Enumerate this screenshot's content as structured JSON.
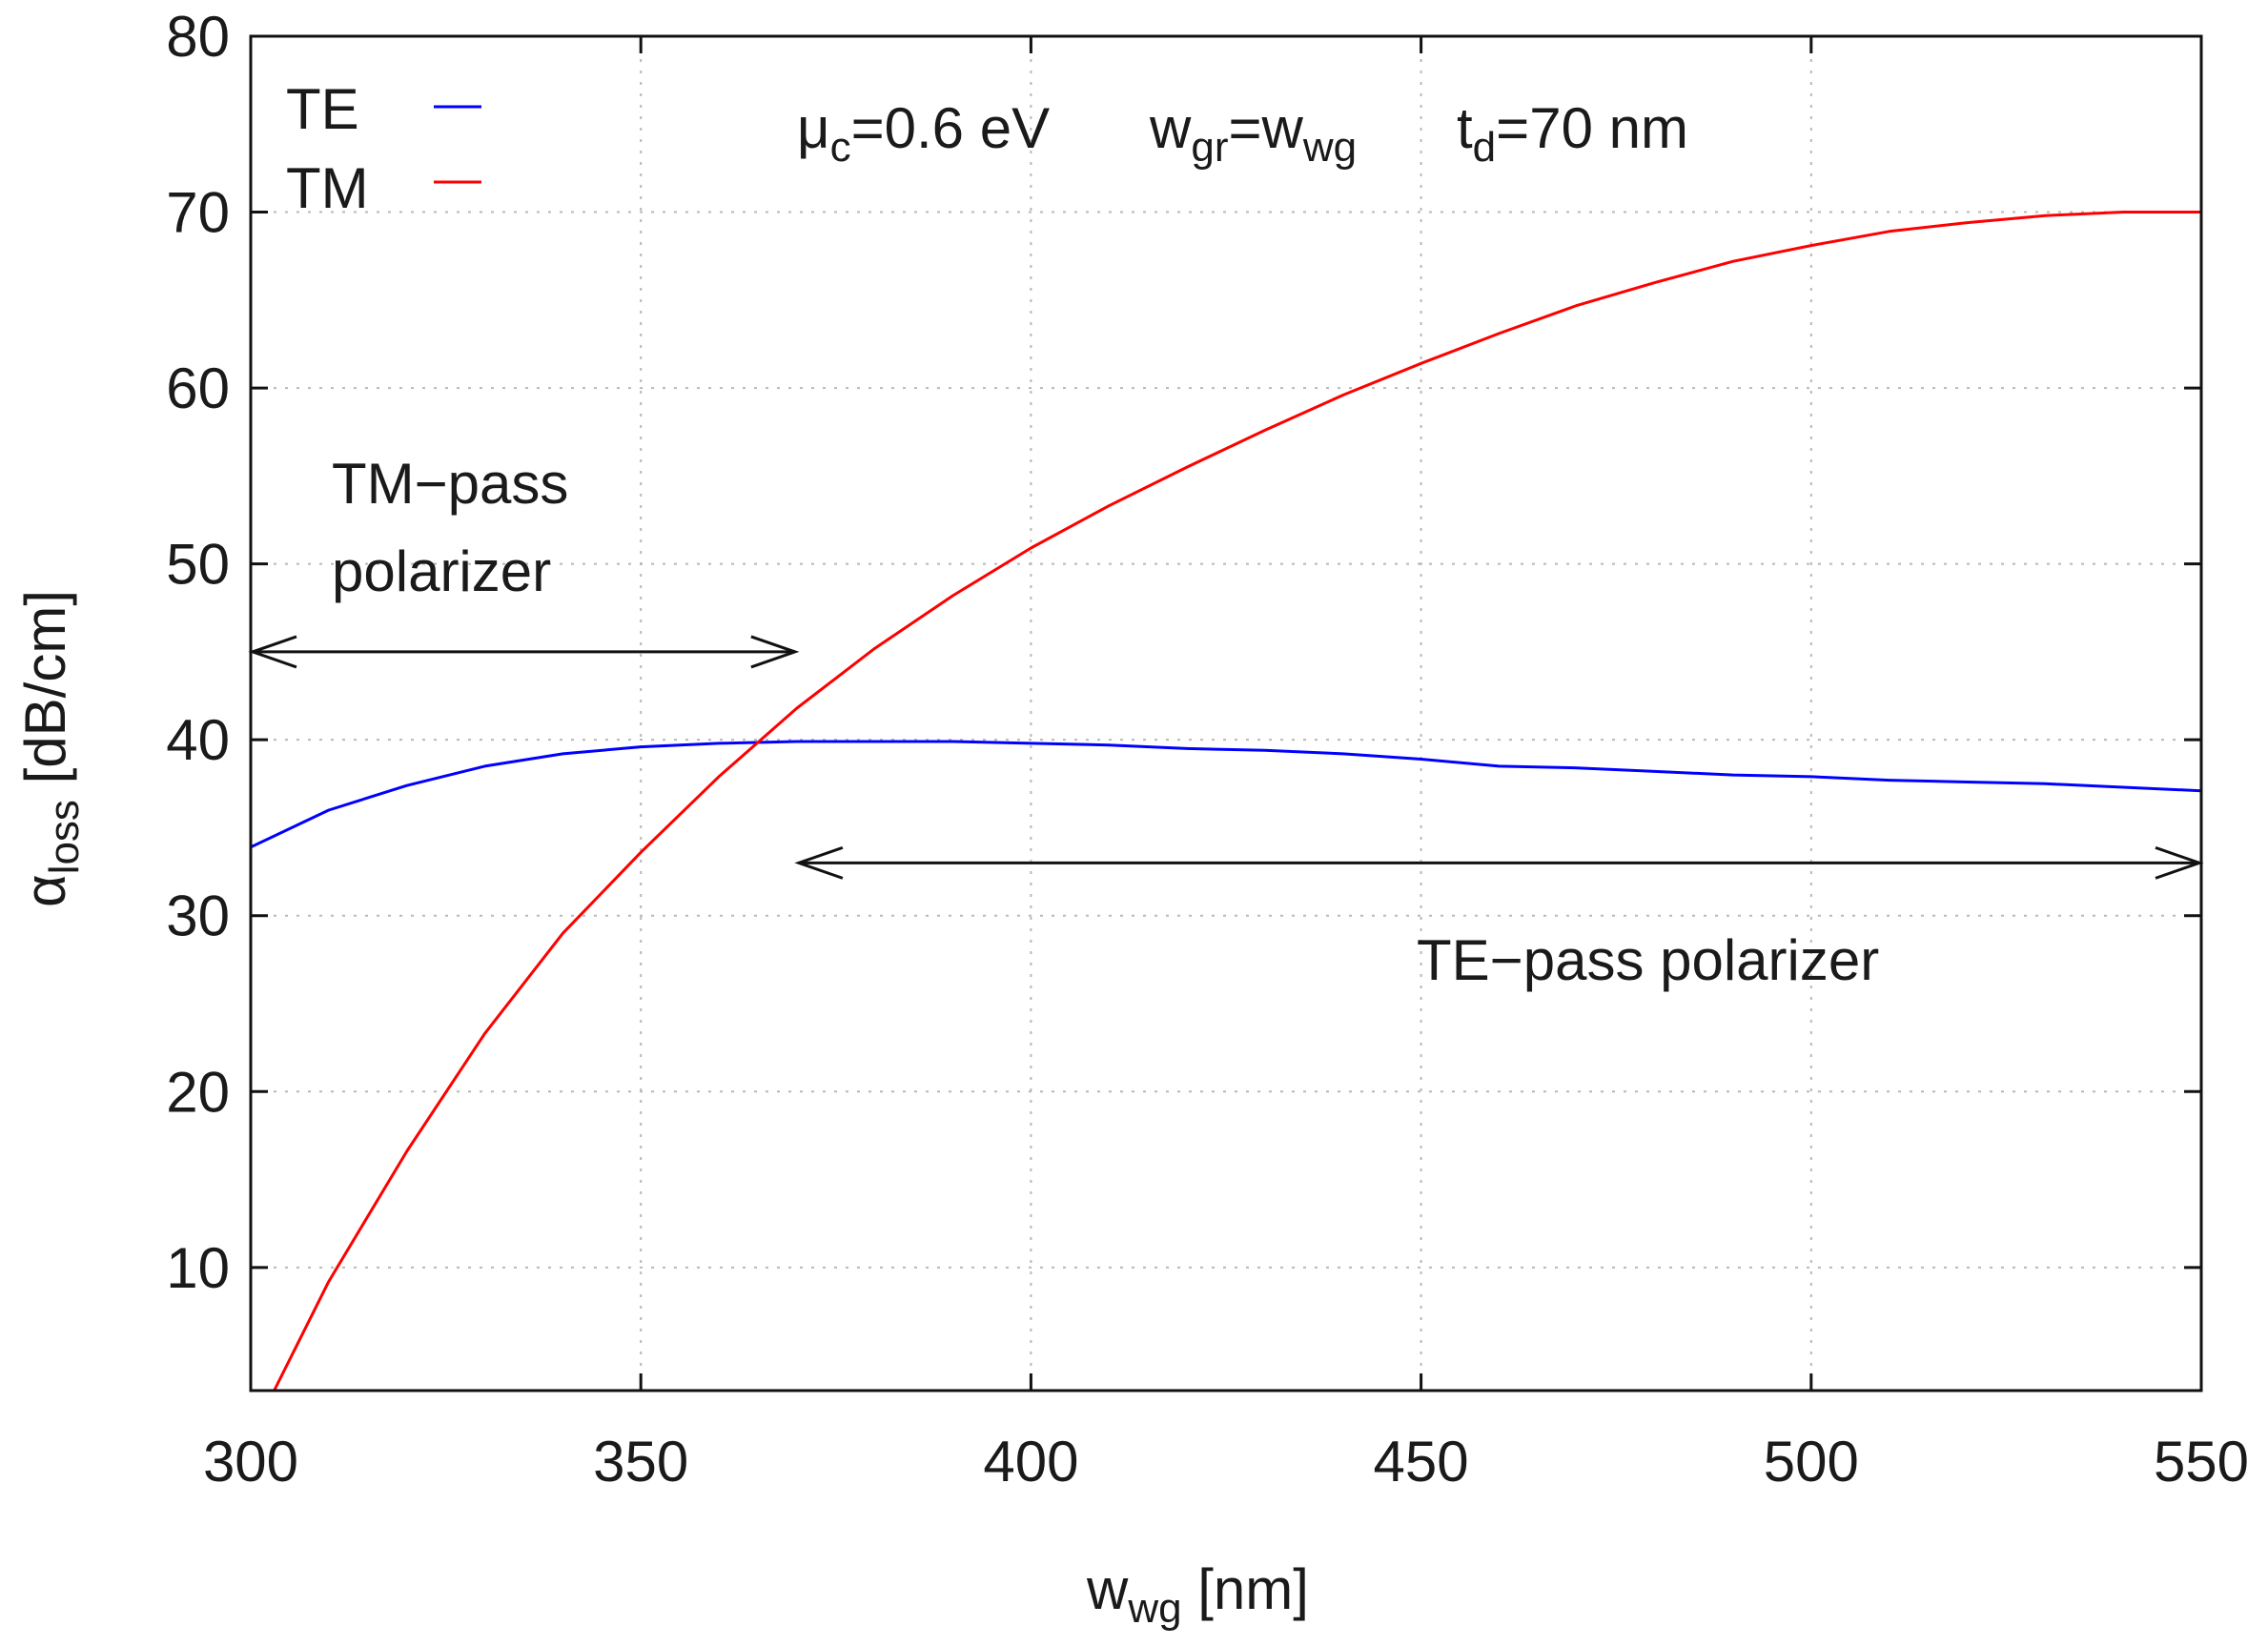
{
  "chart_data": {
    "type": "line",
    "xlabel": "w",
    "xlabel_sub": "wg",
    "xlabel_unit": " [nm]",
    "ylabel": "α",
    "ylabel_sub": "loss",
    "ylabel_unit": " [dB/cm]",
    "xlim": [
      300,
      550
    ],
    "ylim": [
      3,
      80
    ],
    "x_ticks": [
      "300",
      "350",
      "400",
      "450",
      "500",
      "550"
    ],
    "y_ticks": [
      "10",
      "20",
      "30",
      "40",
      "50",
      "60",
      "70",
      "80"
    ],
    "grid": true,
    "legend_position": "top-left",
    "series": [
      {
        "name": "TE",
        "color": "#0000ff",
        "x": [
          300,
          310,
          320,
          330,
          340,
          350,
          360,
          370,
          380,
          390,
          400,
          410,
          420,
          430,
          440,
          450,
          460,
          470,
          480,
          490,
          500,
          510,
          520,
          530,
          540,
          550
        ],
        "y": [
          33.9,
          36.0,
          37.4,
          38.5,
          39.2,
          39.6,
          39.8,
          39.9,
          39.9,
          39.9,
          39.8,
          39.7,
          39.5,
          39.4,
          39.2,
          38.9,
          38.5,
          38.4,
          38.2,
          38.0,
          37.9,
          37.7,
          37.6,
          37.5,
          37.3,
          37.1
        ]
      },
      {
        "name": "TM",
        "color": "#ff0000",
        "x": [
          303,
          310,
          320,
          330,
          340,
          350,
          360,
          370,
          380,
          390,
          400,
          410,
          420,
          430,
          440,
          450,
          460,
          470,
          480,
          490,
          500,
          510,
          520,
          530,
          540,
          550
        ],
        "y": [
          3.0,
          9.2,
          16.6,
          23.3,
          29.0,
          33.6,
          37.9,
          41.8,
          45.2,
          48.2,
          50.9,
          53.3,
          55.5,
          57.6,
          59.6,
          61.4,
          63.1,
          64.7,
          66.0,
          67.2,
          68.1,
          68.9,
          69.4,
          69.8,
          70.0,
          70.0
        ]
      }
    ],
    "annotations": {
      "params": {
        "mu": "μ",
        "mu_sub": "c",
        "mu_val": "=0.6 eV",
        "w1": "w",
        "w1_sub": "gr",
        "eq": "=w",
        "w2_sub": "wg",
        "t": "t",
        "t_sub": "d",
        "t_val": "=70 nm"
      },
      "tm_pass_line1": "TM−pass",
      "tm_pass_line2": "polarizer",
      "te_pass": "TE−pass polarizer",
      "tm_pass_range": [
        300,
        370
      ],
      "tm_pass_level": 45,
      "te_pass_range": [
        370,
        550
      ],
      "te_pass_level": 33
    }
  }
}
